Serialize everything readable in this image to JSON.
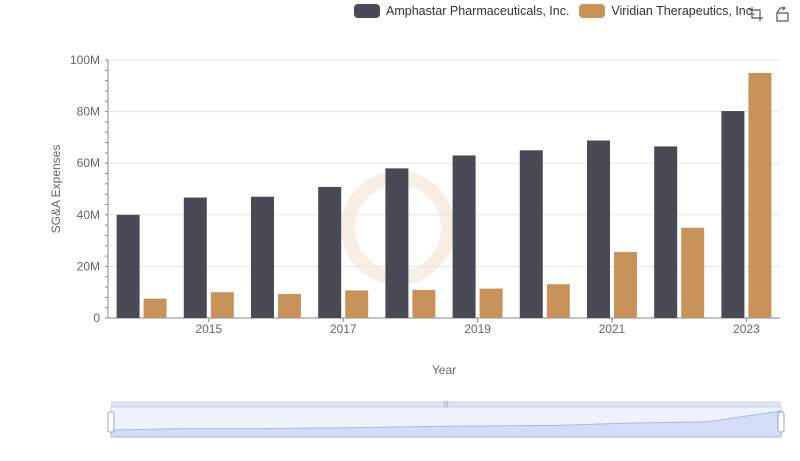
{
  "legend": {
    "items": [
      {
        "label": "Amphastar Pharmaceuticals, Inc.",
        "color": "#4a4a56"
      },
      {
        "label": "Viridian Therapeutics, Inc.",
        "color": "#c8935a"
      }
    ]
  },
  "toolbox": {
    "icons": [
      "zoom-icon",
      "zoom-reset-icon"
    ]
  },
  "chart_data": {
    "type": "bar",
    "xlabel": "Year",
    "ylabel": "SG&A Expenses",
    "ylim": [
      0,
      100000000
    ],
    "ytick_labels": [
      "0",
      "20M",
      "40M",
      "60M",
      "80M",
      "100M"
    ],
    "categories": [
      "2014",
      "2015",
      "2016",
      "2017",
      "2018",
      "2019",
      "2020",
      "2021",
      "2022",
      "2023"
    ],
    "xtick_labels": [
      "2015",
      "2017",
      "2019",
      "2021",
      "2023"
    ],
    "series": [
      {
        "name": "Amphastar Pharmaceuticals, Inc.",
        "color": "#4a4a56",
        "values": [
          40000000,
          46700000,
          47000000,
          50800000,
          58000000,
          63000000,
          65000000,
          68800000,
          66500000,
          80200000
        ]
      },
      {
        "name": "Viridian Therapeutics, Inc.",
        "color": "#c8935a",
        "values": [
          7500000,
          10000000,
          9300000,
          10700000,
          10900000,
          11400000,
          13100000,
          25600000,
          35000000,
          95000000
        ]
      }
    ],
    "grid": true,
    "legend_position": "top-right",
    "has_datazoom_slider": true
  }
}
